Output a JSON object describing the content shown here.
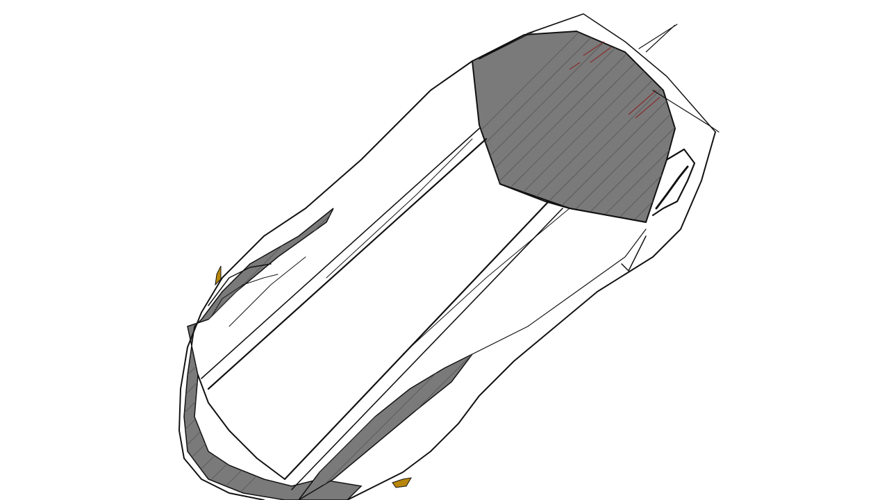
{
  "canvas": {
    "background": "#ffffff"
  },
  "sketch": {
    "subject": "car-top-view-sketch",
    "colors": {
      "ink": "#111111",
      "glass": "#7a7a7a",
      "glass_hatch": "#5a5a5a",
      "body": "#ffffff",
      "accent": "#b8860b",
      "highlight_red": "#8b1a1a"
    }
  }
}
